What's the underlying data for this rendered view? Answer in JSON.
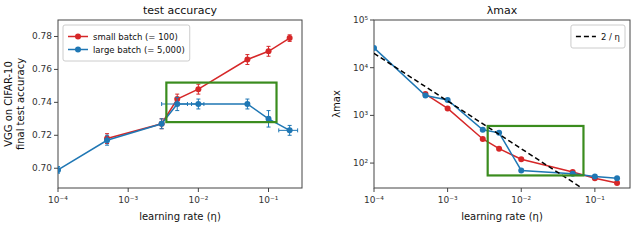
{
  "chart_data": [
    {
      "type": "line",
      "title": "test accuracy",
      "x_label": "learning rate (η)",
      "y_label": "VGG on CIFAR-10\nfinal test accuracy",
      "log": "x",
      "grid": false,
      "legend": "upper left",
      "xlim": [
        0.0001,
        0.3
      ],
      "ylim": [
        0.688,
        0.79
      ],
      "xticks": [
        {
          "value": 0.0001,
          "label": "10⁻⁴"
        },
        {
          "value": 0.001,
          "label": "10⁻³"
        },
        {
          "value": 0.01,
          "label": "10⁻²"
        },
        {
          "value": 0.1,
          "label": "10⁻¹"
        }
      ],
      "yticks": [
        {
          "value": 0.7,
          "label": "0.70"
        },
        0.72,
        0.74,
        0.76,
        0.78
      ],
      "series": [
        {
          "name": "small batch (= 100)",
          "color": "#d62728",
          "marker": "circle",
          "x": [
            0.0005,
            0.003,
            0.005,
            0.01,
            0.05,
            0.1,
            0.2
          ],
          "values": [
            0.718,
            0.727,
            0.742,
            0.748,
            0.766,
            0.771,
            0.779
          ],
          "y_error": [
            0.003,
            0.003,
            0.003,
            0.003,
            0.003,
            0.003,
            0.002
          ]
        },
        {
          "name": "large batch (= 5,000)",
          "color": "#1f77b4",
          "marker": "circle",
          "x": [
            0.0001,
            0.0005,
            0.003,
            0.005,
            0.01,
            0.05,
            0.1,
            0.2
          ],
          "values": [
            0.699,
            0.717,
            0.727,
            0.739,
            0.739,
            0.739,
            0.73,
            0.723
          ],
          "y_error": [
            0.002,
            0.003,
            0.003,
            0.004,
            0.003,
            0.003,
            0.005,
            0.003
          ],
          "x_error_low": [
            0,
            0,
            0,
            0.002,
            0.002,
            0.003,
            0.004,
            0.06
          ],
          "x_error_high": [
            0,
            0,
            0,
            0.002,
            0.002,
            0.003,
            0.006,
            0.06
          ]
        }
      ],
      "highlight_box": {
        "x0": 0.0035,
        "x1": 0.13,
        "y0": 0.728,
        "y1": 0.752,
        "color": "#3a8c1e"
      }
    },
    {
      "type": "line",
      "title": "λmax",
      "x_label": "learning rate (η)",
      "y_label": "λmax",
      "log": true,
      "grid": false,
      "legend": "upper right",
      "xlim": [
        0.0001,
        0.3
      ],
      "ylim": [
        30,
        100000
      ],
      "xticks": [
        {
          "value": 0.0001,
          "label": "10⁻⁴"
        },
        {
          "value": 0.001,
          "label": "10⁻³"
        },
        {
          "value": 0.01,
          "label": "10⁻²"
        },
        {
          "value": 0.1,
          "label": "10⁻¹"
        }
      ],
      "yticks": [
        {
          "value": 100,
          "label": "10²"
        },
        {
          "value": 1000,
          "label": "10³"
        },
        {
          "value": 10000,
          "label": "10⁴"
        },
        {
          "value": 100000,
          "label": "10⁵"
        }
      ],
      "series": [
        {
          "color": "#d62728",
          "marker": "circle",
          "x": [
            0.0005,
            0.001,
            0.003,
            0.005,
            0.01,
            0.05,
            0.1,
            0.2
          ],
          "values": [
            2800,
            1400,
            320,
            200,
            120,
            65,
            48,
            38
          ]
        },
        {
          "color": "#1f77b4",
          "marker": "circle",
          "x": [
            0.0001,
            0.0005,
            0.001,
            0.003,
            0.005,
            0.01,
            0.05,
            0.1,
            0.2
          ],
          "values": [
            26000,
            2600,
            2100,
            500,
            430,
            70,
            60,
            52,
            48
          ]
        },
        {
          "name": "2 / η",
          "color": "black",
          "marker": "none",
          "line_style": "dashed",
          "x": [
            0.0001,
            0.01,
            0.0625
          ],
          "values": [
            20000,
            200,
            32
          ]
        }
      ],
      "highlight_box": {
        "x0": 0.0035,
        "x1": 0.07,
        "y0": 55,
        "y1": 600,
        "color": "#3a8c1e"
      }
    }
  ]
}
